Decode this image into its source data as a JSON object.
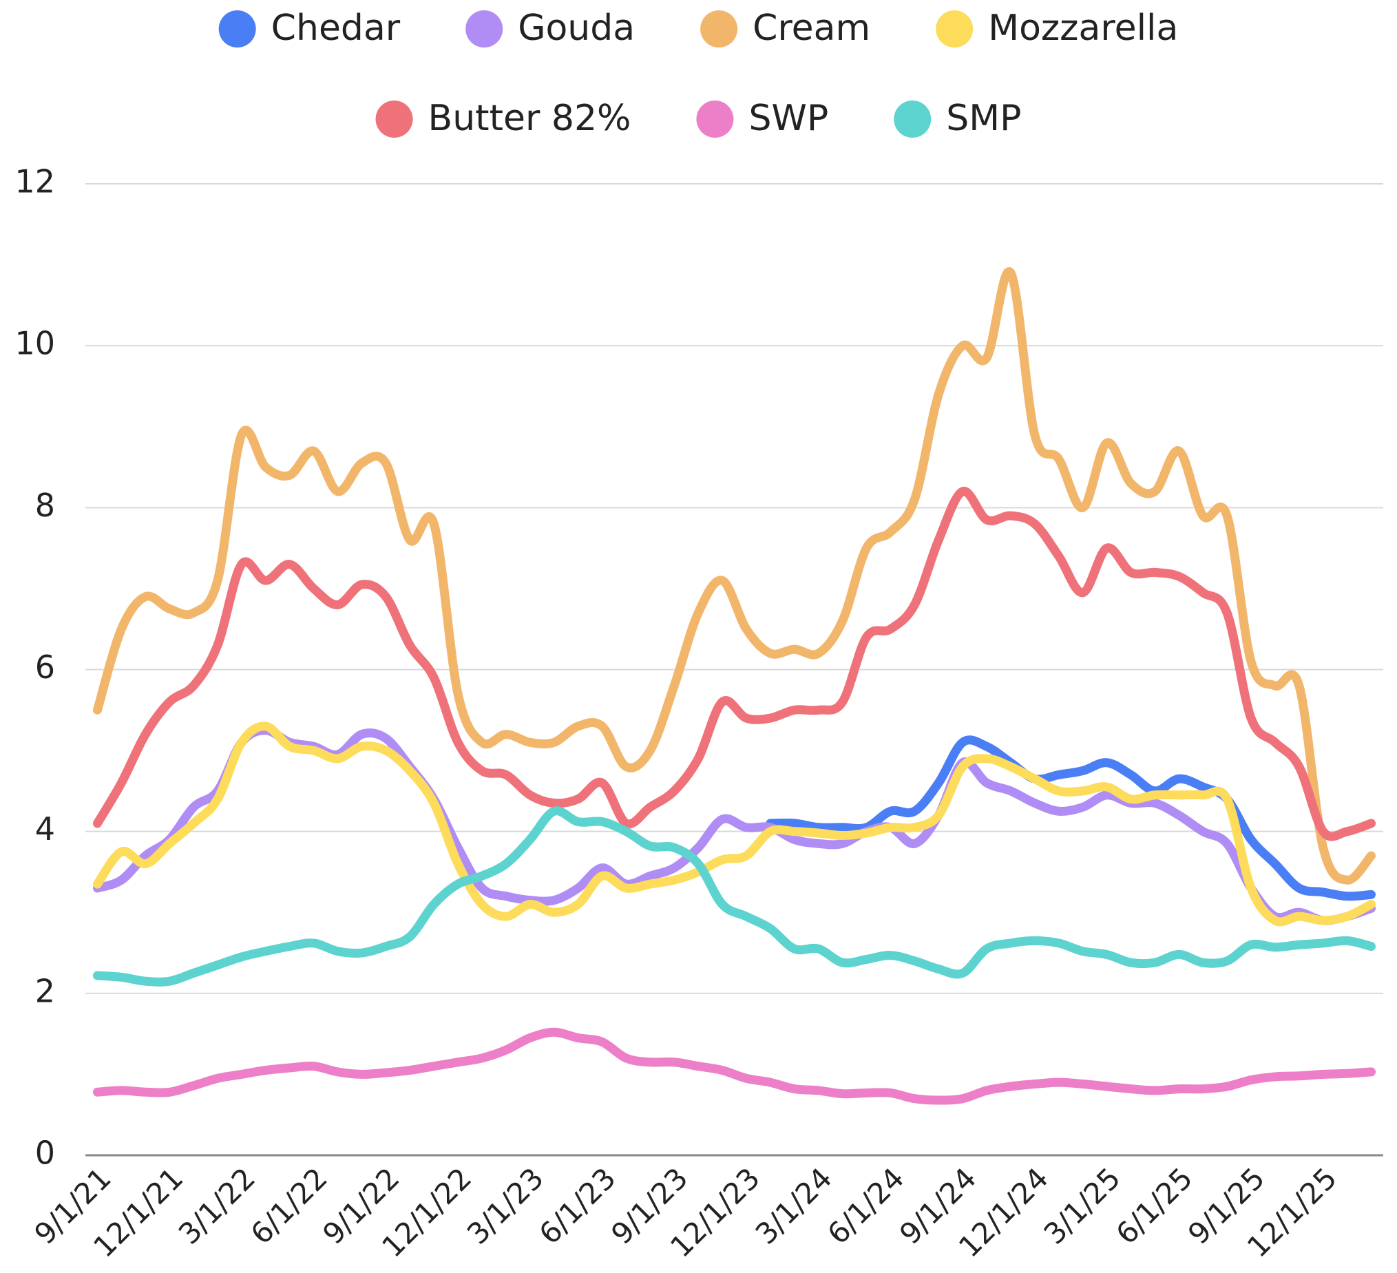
{
  "chart_data": {
    "type": "line",
    "categories": [
      "9/1/21",
      null,
      null,
      "12/1/21",
      null,
      null,
      "3/1/22",
      null,
      null,
      "6/1/22",
      null,
      null,
      "9/1/22",
      null,
      null,
      "12/1/22",
      null,
      null,
      "3/1/23",
      null,
      null,
      "6/1/23",
      null,
      null,
      "9/1/23",
      null,
      null,
      "12/1/23",
      null,
      null,
      "3/1/24",
      null,
      null,
      "6/1/24",
      null,
      null,
      "9/1/24",
      null,
      null,
      "12/1/24",
      null,
      null,
      "3/1/25",
      null,
      null,
      "6/1/25",
      null,
      null,
      "9/1/25",
      null,
      null,
      "12/1/25",
      null,
      null
    ],
    "series": [
      {
        "name": "Chedar",
        "color": "#4a7ef5",
        "values": [
          null,
          null,
          null,
          null,
          null,
          null,
          null,
          null,
          null,
          null,
          null,
          null,
          null,
          null,
          null,
          null,
          null,
          null,
          null,
          null,
          null,
          null,
          null,
          null,
          null,
          null,
          null,
          null,
          4.1,
          4.1,
          4.05,
          4.05,
          4.05,
          4.25,
          4.25,
          4.6,
          5.1,
          5.05,
          4.85,
          4.65,
          4.7,
          4.75,
          4.85,
          4.7,
          4.5,
          4.65,
          4.55,
          4.4,
          3.9,
          3.6,
          3.3,
          3.25,
          3.2,
          3.22
        ]
      },
      {
        "name": "Gouda",
        "color": "#b08cf5",
        "values": [
          3.3,
          3.4,
          3.7,
          3.9,
          4.3,
          4.5,
          5.1,
          5.25,
          5.1,
          5.05,
          4.95,
          5.2,
          5.15,
          4.8,
          4.4,
          3.8,
          3.3,
          3.2,
          3.15,
          3.15,
          3.3,
          3.55,
          3.35,
          3.45,
          3.55,
          3.8,
          4.15,
          4.05,
          4.05,
          3.9,
          3.85,
          3.85,
          4.0,
          4.05,
          3.85,
          4.2,
          4.85,
          4.6,
          4.5,
          4.35,
          4.25,
          4.3,
          4.45,
          4.35,
          4.35,
          4.2,
          4.0,
          3.85,
          3.3,
          2.95,
          3.0,
          2.9,
          2.95,
          3.05
        ]
      },
      {
        "name": "Cream",
        "color": "#f2b66b",
        "values": [
          5.5,
          6.5,
          6.9,
          6.75,
          6.7,
          7.1,
          8.9,
          8.5,
          8.4,
          8.7,
          8.2,
          8.55,
          8.55,
          7.6,
          7.8,
          5.7,
          5.1,
          5.2,
          5.1,
          5.1,
          5.3,
          5.3,
          4.8,
          5.0,
          5.8,
          6.7,
          7.1,
          6.5,
          6.2,
          6.25,
          6.2,
          6.6,
          7.5,
          7.7,
          8.1,
          9.4,
          10.0,
          9.85,
          10.9,
          8.9,
          8.6,
          8.0,
          8.8,
          8.3,
          8.2,
          8.7,
          7.9,
          7.9,
          6.1,
          5.8,
          5.8,
          3.8,
          3.4,
          3.7
        ]
      },
      {
        "name": "Mozzarella",
        "color": "#fddc5c",
        "values": [
          3.35,
          3.75,
          3.6,
          3.85,
          4.1,
          4.4,
          5.1,
          5.3,
          5.05,
          5.0,
          4.9,
          5.05,
          5.0,
          4.75,
          4.35,
          3.6,
          3.1,
          2.95,
          3.1,
          3.0,
          3.1,
          3.45,
          3.3,
          3.35,
          3.4,
          3.5,
          3.65,
          3.7,
          4.0,
          4.0,
          3.98,
          3.95,
          3.98,
          4.05,
          4.05,
          4.2,
          4.8,
          4.9,
          4.8,
          4.65,
          4.5,
          4.5,
          4.55,
          4.4,
          4.45,
          4.45,
          4.45,
          4.4,
          3.3,
          2.9,
          2.95,
          2.9,
          2.95,
          3.1
        ]
      },
      {
        "name": "Butter 82%",
        "color": "#ef717a",
        "values": [
          4.1,
          4.6,
          5.2,
          5.6,
          5.8,
          6.3,
          7.3,
          7.1,
          7.3,
          7.0,
          6.8,
          7.05,
          6.9,
          6.3,
          5.9,
          5.1,
          4.75,
          4.7,
          4.45,
          4.35,
          4.4,
          4.6,
          4.1,
          4.3,
          4.5,
          4.9,
          5.6,
          5.4,
          5.4,
          5.5,
          5.5,
          5.6,
          6.4,
          6.5,
          6.8,
          7.6,
          8.2,
          7.85,
          7.9,
          7.8,
          7.4,
          6.95,
          7.5,
          7.2,
          7.2,
          7.15,
          6.95,
          6.7,
          5.4,
          5.1,
          4.8,
          4.0,
          4.0,
          4.1
        ]
      },
      {
        "name": "SWP",
        "color": "#ec7fc7",
        "values": [
          0.78,
          0.8,
          0.78,
          0.78,
          0.86,
          0.95,
          1.0,
          1.05,
          1.08,
          1.1,
          1.03,
          1.0,
          1.02,
          1.05,
          1.1,
          1.15,
          1.2,
          1.3,
          1.45,
          1.52,
          1.45,
          1.4,
          1.2,
          1.15,
          1.15,
          1.1,
          1.05,
          0.95,
          0.9,
          0.82,
          0.8,
          0.76,
          0.77,
          0.77,
          0.7,
          0.68,
          0.7,
          0.8,
          0.85,
          0.88,
          0.9,
          0.88,
          0.85,
          0.82,
          0.8,
          0.82,
          0.82,
          0.85,
          0.93,
          0.97,
          0.98,
          1.0,
          1.01,
          1.03
        ]
      },
      {
        "name": "SMP",
        "color": "#5dd3d0",
        "values": [
          2.22,
          2.2,
          2.15,
          2.15,
          2.25,
          2.35,
          2.45,
          2.52,
          2.58,
          2.62,
          2.52,
          2.5,
          2.58,
          2.7,
          3.1,
          3.35,
          3.45,
          3.6,
          3.9,
          4.25,
          4.12,
          4.12,
          4.0,
          3.82,
          3.8,
          3.6,
          3.1,
          2.95,
          2.8,
          2.55,
          2.55,
          2.38,
          2.42,
          2.47,
          2.4,
          2.3,
          2.25,
          2.55,
          2.62,
          2.65,
          2.62,
          2.52,
          2.48,
          2.38,
          2.38,
          2.48,
          2.38,
          2.4,
          2.6,
          2.57,
          2.6,
          2.62,
          2.65,
          2.58
        ]
      }
    ],
    "ylim": [
      0,
      12
    ],
    "yticks": [
      0,
      2,
      4,
      6,
      8,
      10,
      12
    ],
    "grid": true
  }
}
